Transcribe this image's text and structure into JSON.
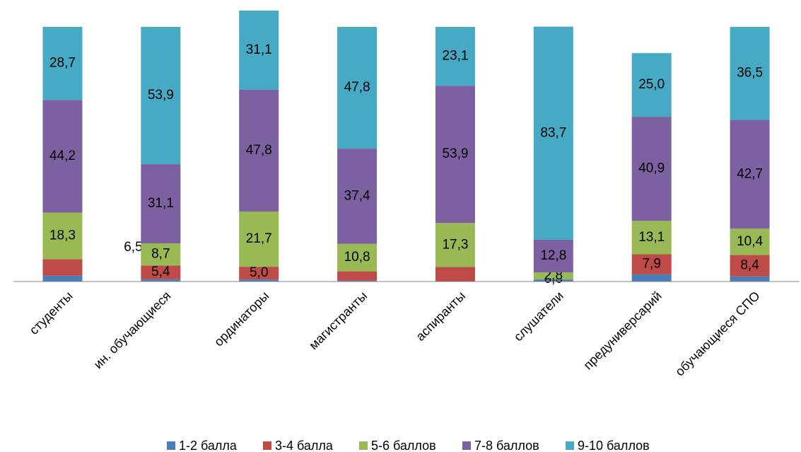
{
  "chart_data": {
    "type": "stacked_bar",
    "categories": [
      "студенты",
      "ин. обучающиеся",
      "ординаторы",
      "магистранты",
      "аспиранты",
      "слушатели",
      "предуниверсарий",
      "обучающиеся СПО"
    ],
    "ylim": [
      0,
      106.4
    ],
    "series": [
      {
        "name": "1-2 балла",
        "color": "#4a7ebb",
        "values": [
          2.3,
          0.9,
          0.8,
          0.4,
          0,
          0.8,
          2.8,
          2.0
        ],
        "value_labels": [
          null,
          null,
          null,
          null,
          null,
          null,
          null,
          null
        ]
      },
      {
        "name": "3-4 балла",
        "color": "#be4b48",
        "values": [
          6.5,
          5.4,
          5.0,
          3.6,
          5.7,
          0.0,
          7.9,
          8.4
        ],
        "value_labels": [
          "6,5",
          "5,4",
          "5,0",
          null,
          null,
          "0,0",
          "7,9",
          "8,4"
        ]
      },
      {
        "name": "5-6 баллов",
        "color": "#98b954",
        "values": [
          18.3,
          8.7,
          21.7,
          10.8,
          17.3,
          2.8,
          13.1,
          10.4
        ],
        "value_labels": [
          "18,3",
          "8,7",
          "21,7",
          "10,8",
          "17,3",
          "2,8",
          "13,1",
          "10,4"
        ]
      },
      {
        "name": "7-8 баллов",
        "color": "#7d60a0",
        "values": [
          44.2,
          31.1,
          47.8,
          37.4,
          53.9,
          12.8,
          40.9,
          42.7
        ],
        "value_labels": [
          "44,2",
          "31,1",
          "47,8",
          "37,4",
          "53,9",
          "12,8",
          "40,9",
          "42,7"
        ]
      },
      {
        "name": "9-10 баллов",
        "color": "#46aac5",
        "values": [
          28.7,
          53.9,
          31.1,
          47.8,
          23.1,
          83.7,
          25.0,
          36.5
        ],
        "value_labels": [
          "28,7",
          "53,9",
          "31,1",
          "47,8",
          "23,1",
          "83,7",
          "25,0",
          "36,5"
        ]
      }
    ]
  }
}
